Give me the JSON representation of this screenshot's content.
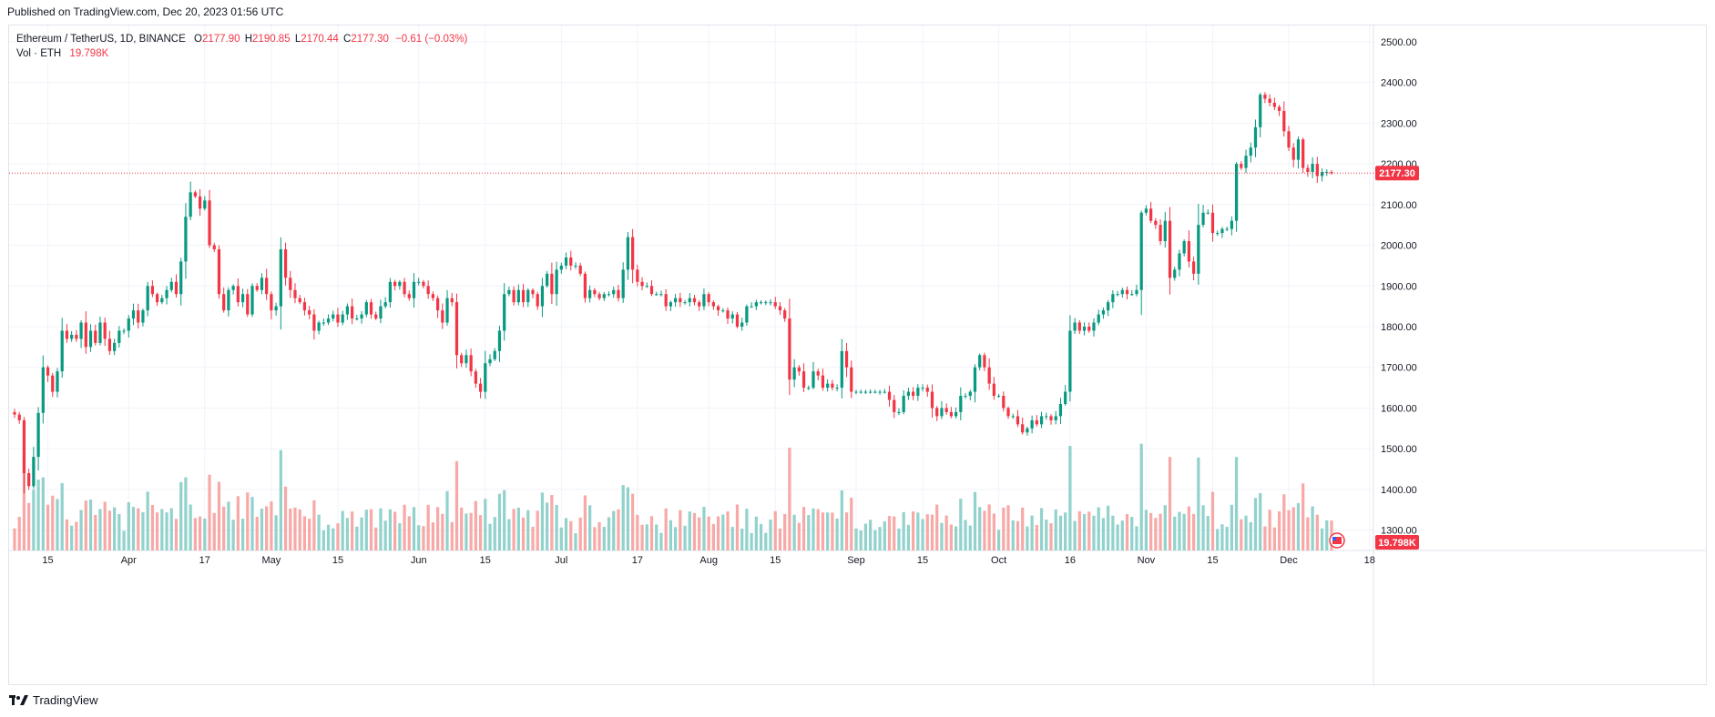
{
  "header": {
    "published": "Published on TradingView.com, Dec 20, 2023 01:56 UTC"
  },
  "legend": {
    "symbol": "Ethereum / TetherUS, 1D, BINANCE",
    "open_label": "O",
    "open": "2177.90",
    "high_label": "H",
    "high": "2190.85",
    "low_label": "L",
    "low": "2170.44",
    "close_label": "C",
    "close": "2177.30",
    "change": "−0.61 (−0.03%)",
    "vol_label": "Vol · ETH",
    "vol": "19.798K"
  },
  "footer": {
    "brand": "TradingView"
  },
  "colors": {
    "up": "#089981",
    "down": "#f23645",
    "vol_up": "#92d2cc",
    "vol_down": "#f7a9a7",
    "grid": "#f0f3fa",
    "axis_text": "#131722"
  },
  "chart_data": {
    "type": "candlestick",
    "symbol": "ETH/USDT",
    "interval": "1D",
    "exchange": "BINANCE",
    "price_axis": {
      "ylim": [
        1250,
        2540
      ],
      "ticks": [
        1300,
        1400,
        1500,
        1600,
        1700,
        1800,
        1900,
        2000,
        2100,
        2200,
        2300,
        2400,
        2500
      ],
      "tick_labels": [
        "1300.00",
        "1400.00",
        "1500.00",
        "1600.00",
        "1700.00",
        "1800.00",
        "1900.00",
        "2000.00",
        "2100.00",
        "2200.00",
        "2300.00",
        "2400.00",
        "2500.00"
      ]
    },
    "time_axis": {
      "labels": [
        {
          "label": "15",
          "index": 7
        },
        {
          "label": "Apr",
          "index": 24
        },
        {
          "label": "17",
          "index": 40
        },
        {
          "label": "May",
          "index": 54
        },
        {
          "label": "15",
          "index": 68
        },
        {
          "label": "Jun",
          "index": 85
        },
        {
          "label": "15",
          "index": 99
        },
        {
          "label": "Jul",
          "index": 115
        },
        {
          "label": "17",
          "index": 131
        },
        {
          "label": "Aug",
          "index": 146
        },
        {
          "label": "15",
          "index": 160
        },
        {
          "label": "Sep",
          "index": 177
        },
        {
          "label": "15",
          "index": 191
        },
        {
          "label": "Oct",
          "index": 207
        },
        {
          "label": "16",
          "index": 222
        },
        {
          "label": "Nov",
          "index": 238
        },
        {
          "label": "15",
          "index": 252
        },
        {
          "label": "Dec",
          "index": 268
        },
        {
          "label": "18",
          "index": 285
        }
      ]
    },
    "last_price": 2177.3,
    "last_price_label": "2177.30",
    "last_volume_label": "19.798K",
    "volume_max": 80000,
    "closes": [
      1584,
      1570,
      1440,
      1408,
      1480,
      1588,
      1700,
      1680,
      1640,
      1690,
      1790,
      1770,
      1780,
      1770,
      1810,
      1750,
      1790,
      1760,
      1810,
      1770,
      1740,
      1760,
      1790,
      1790,
      1820,
      1840,
      1810,
      1840,
      1900,
      1880,
      1860,
      1870,
      1890,
      1910,
      1880,
      1960,
      2070,
      2130,
      2120,
      2090,
      2110,
      2000,
      1990,
      1880,
      1840,
      1890,
      1900,
      1860,
      1880,
      1830,
      1900,
      1890,
      1920,
      1880,
      1840,
      1850,
      1990,
      1920,
      1890,
      1870,
      1860,
      1840,
      1830,
      1790,
      1810,
      1810,
      1820,
      1830,
      1810,
      1830,
      1850,
      1820,
      1820,
      1830,
      1860,
      1830,
      1820,
      1850,
      1860,
      1910,
      1900,
      1910,
      1880,
      1870,
      1910,
      1910,
      1900,
      1880,
      1870,
      1840,
      1810,
      1870,
      1860,
      1730,
      1710,
      1730,
      1690,
      1660,
      1640,
      1710,
      1720,
      1740,
      1790,
      1880,
      1890,
      1860,
      1890,
      1860,
      1890,
      1880,
      1850,
      1900,
      1930,
      1880,
      1940,
      1950,
      1970,
      1950,
      1950,
      1930,
      1870,
      1890,
      1880,
      1870,
      1880,
      1880,
      1890,
      1870,
      1940,
      2020,
      1940,
      1910,
      1900,
      1900,
      1880,
      1880,
      1880,
      1850,
      1860,
      1870,
      1860,
      1860,
      1870,
      1860,
      1850,
      1880,
      1860,
      1850,
      1840,
      1840,
      1820,
      1830,
      1800,
      1810,
      1850,
      1850,
      1860,
      1860,
      1860,
      1860,
      1850,
      1840,
      1820,
      1670,
      1700,
      1690,
      1650,
      1650,
      1690,
      1680,
      1650,
      1660,
      1650,
      1650,
      1740,
      1700,
      1640,
      1640,
      1640,
      1640,
      1640,
      1640,
      1640,
      1640,
      1620,
      1590,
      1590,
      1630,
      1640,
      1630,
      1650,
      1650,
      1640,
      1600,
      1580,
      1600,
      1590,
      1580,
      1590,
      1630,
      1630,
      1640,
      1700,
      1730,
      1700,
      1660,
      1630,
      1630,
      1600,
      1580,
      1580,
      1560,
      1540,
      1550,
      1570,
      1560,
      1580,
      1580,
      1570,
      1580,
      1610,
      1640,
      1790,
      1810,
      1790,
      1800,
      1790,
      1810,
      1830,
      1840,
      1860,
      1880,
      1880,
      1890,
      1880,
      1880,
      1890,
      2080,
      2090,
      2060,
      2050,
      2010,
      2060,
      1920,
      1940,
      1980,
      2010,
      1960,
      1930,
      2050,
      2080,
      2080,
      2030,
      2030,
      2040,
      2040,
      2060,
      2200,
      2190,
      2220,
      2240,
      2290,
      2370,
      2360,
      2350,
      2340,
      2330,
      2280,
      2240,
      2210,
      2260,
      2190,
      2180,
      2200,
      2170,
      2180,
      2180,
      2177
    ]
  }
}
